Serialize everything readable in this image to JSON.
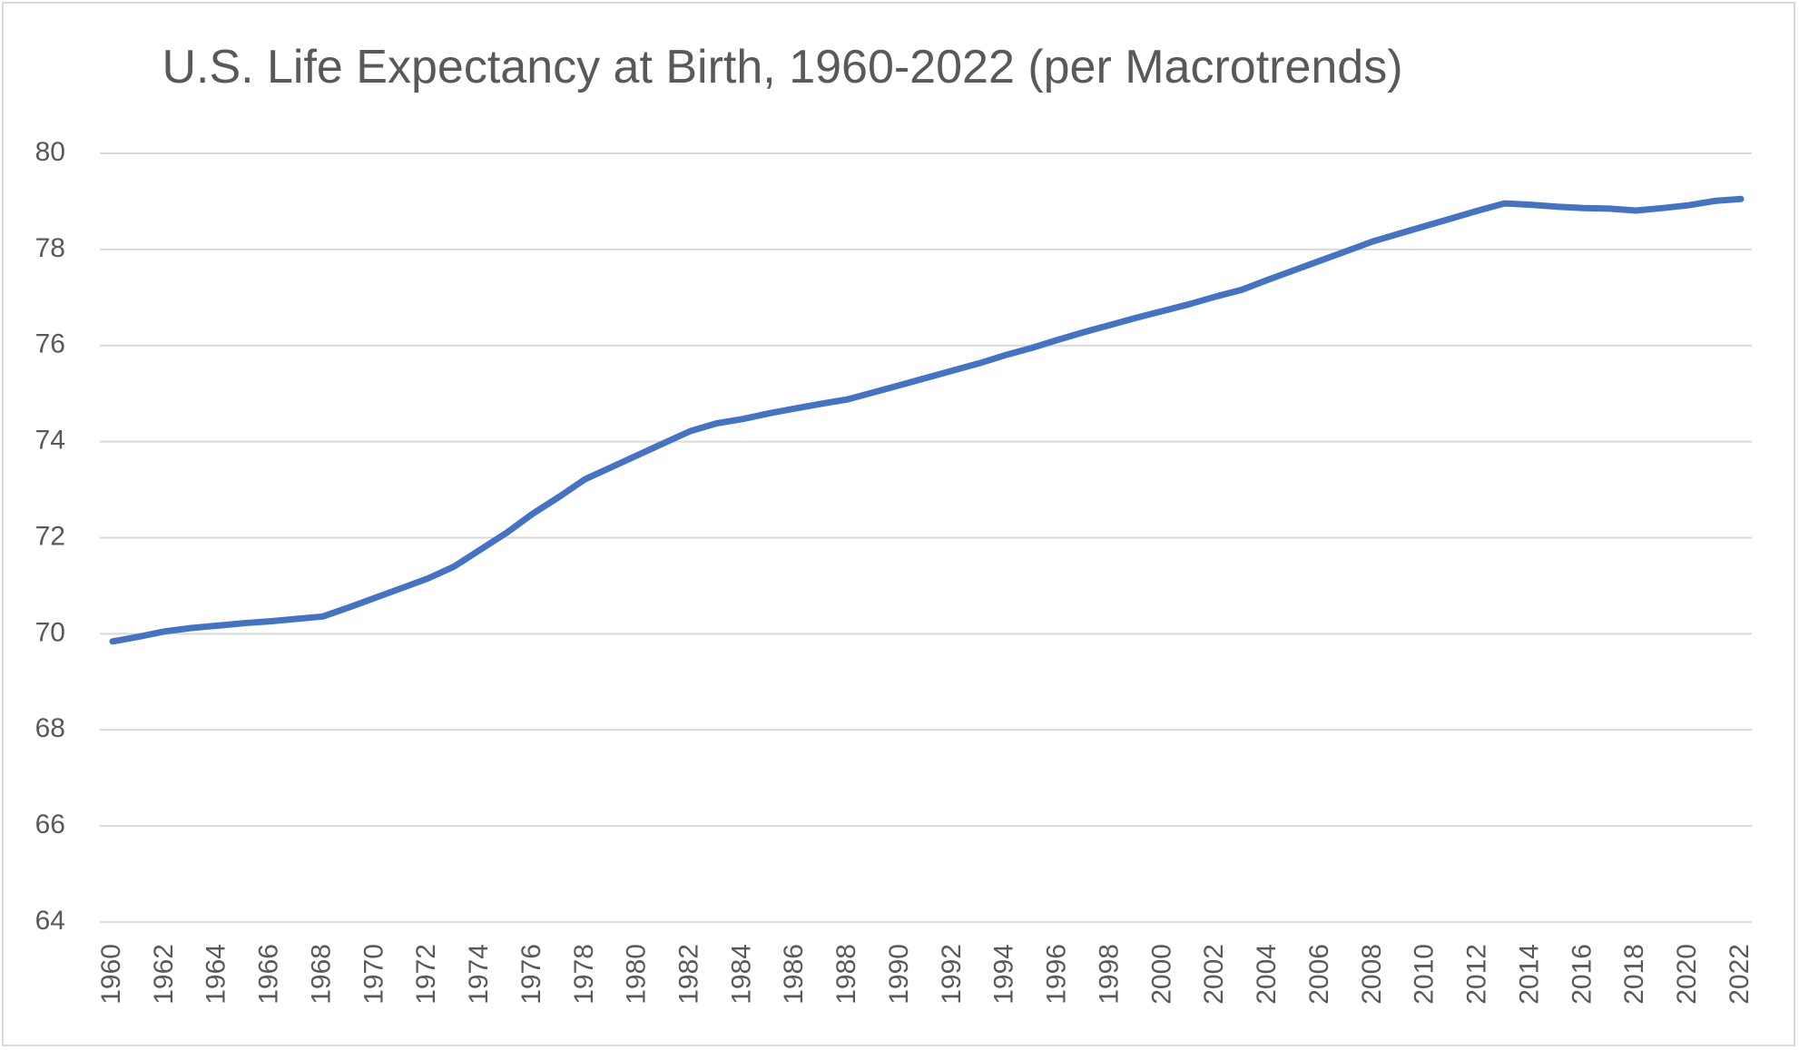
{
  "chart_data": {
    "type": "line",
    "title": "U.S. Life Expectancy at Birth, 1960-2022 (per Macrotrends)",
    "xlabel": "",
    "ylabel": "",
    "ylim": [
      64,
      80
    ],
    "yticks": [
      64,
      66,
      68,
      70,
      72,
      74,
      76,
      78,
      80
    ],
    "xlim": [
      1960,
      2022
    ],
    "xtick_labels": [
      "1960",
      "1962",
      "1964",
      "1966",
      "1968",
      "1970",
      "1972",
      "1974",
      "1976",
      "1978",
      "1980",
      "1982",
      "1984",
      "1986",
      "1988",
      "1990",
      "1992",
      "1994",
      "1996",
      "1998",
      "2000",
      "2002",
      "2004",
      "2006",
      "2008",
      "2010",
      "2012",
      "2014",
      "2016",
      "2018",
      "2020",
      "2022"
    ],
    "grid": "horizontal",
    "legend": "none",
    "colors": {
      "line": "#4472c4",
      "grid": "#d9d9d9",
      "text": "#595959"
    },
    "series": [
      {
        "x": [
          1960,
          1961,
          1962,
          1963,
          1964,
          1965,
          1966,
          1967,
          1968,
          1969,
          1970,
          1971,
          1972,
          1973,
          1974,
          1975,
          1976,
          1977,
          1978,
          1979,
          1980,
          1981,
          1982,
          1983,
          1984,
          1985,
          1986,
          1987,
          1988,
          1989,
          1990,
          1991,
          1992,
          1993,
          1994,
          1995,
          1996,
          1997,
          1998,
          1999,
          2000,
          2001,
          2002,
          2003,
          2004,
          2005,
          2006,
          2007,
          2008,
          2009,
          2010,
          2011,
          2012,
          2013,
          2014,
          2015,
          2016,
          2017,
          2018,
          2019,
          2020,
          2021,
          2022
        ],
        "values": [
          69.84,
          69.94,
          70.05,
          70.12,
          70.17,
          70.22,
          70.26,
          70.31,
          70.36,
          70.55,
          70.75,
          70.95,
          71.15,
          71.4,
          71.75,
          72.1,
          72.5,
          72.85,
          73.22,
          73.47,
          73.72,
          73.97,
          74.22,
          74.38,
          74.47,
          74.59,
          74.69,
          74.79,
          74.88,
          75.03,
          75.18,
          75.33,
          75.48,
          75.63,
          75.8,
          75.95,
          76.12,
          76.28,
          76.43,
          76.58,
          76.72,
          76.86,
          77.02,
          77.16,
          77.37,
          77.57,
          77.77,
          77.97,
          78.17,
          78.33,
          78.49,
          78.65,
          78.81,
          78.96,
          78.93,
          78.89,
          78.86,
          78.85,
          78.81,
          78.86,
          78.92,
          79.01,
          79.05
        ]
      }
    ]
  }
}
